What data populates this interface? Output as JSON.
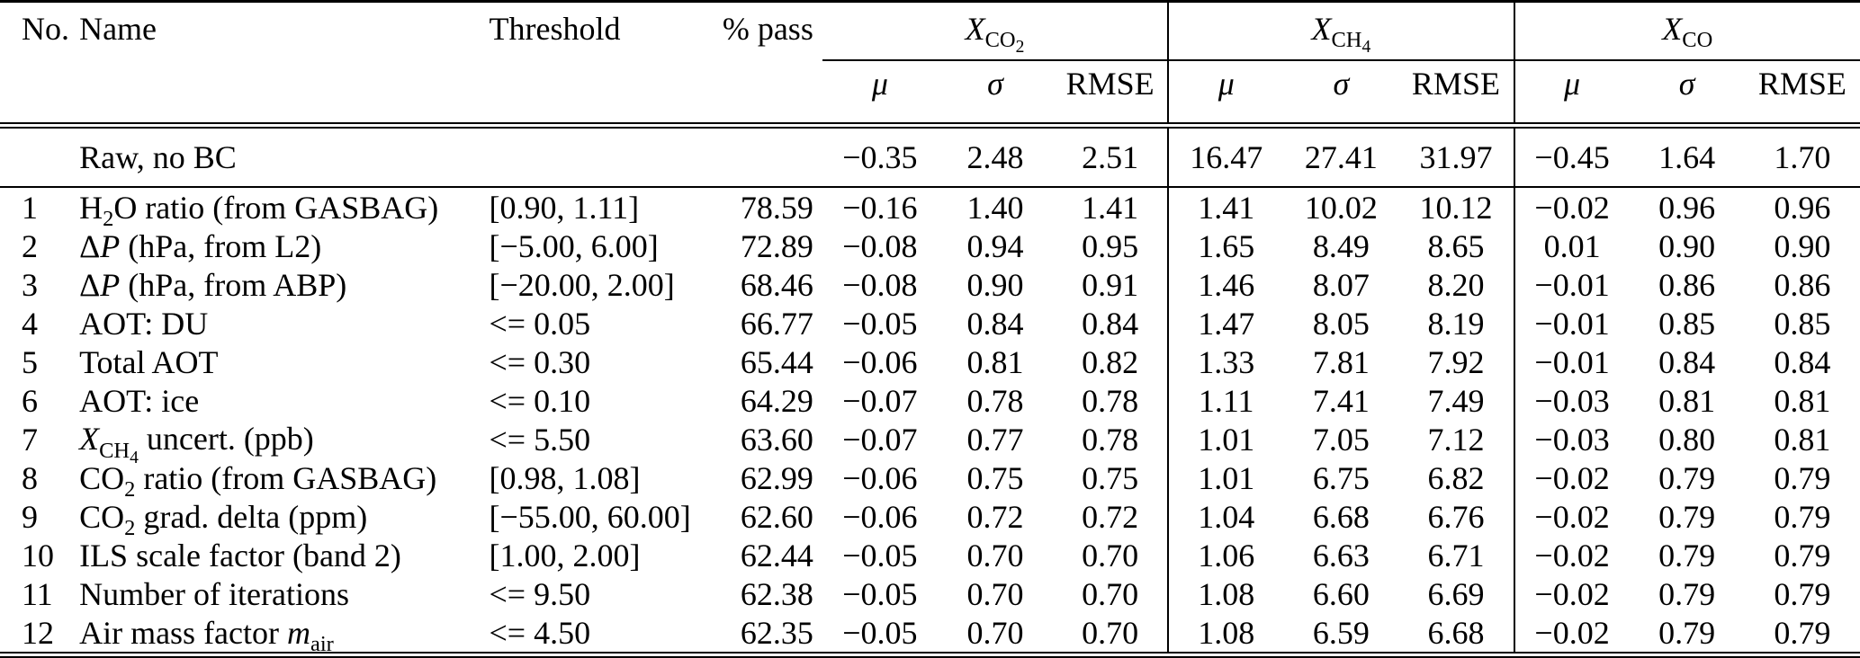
{
  "table": {
    "header": {
      "no": "No.",
      "name": "Name",
      "threshold": "Threshold",
      "pass": "% pass",
      "groups": [
        {
          "label_html": "<i>X</i><sub>CO<sub>2</sub></sub>"
        },
        {
          "label_html": "<i>X</i><sub>CH<sub>4</sub></sub>"
        },
        {
          "label_html": "<i>X</i><sub>CO</sub>"
        }
      ],
      "mu": "μ",
      "sigma": "σ",
      "rmse": "RMSE"
    },
    "raw_row": {
      "name": "Raw, no BC",
      "values": [
        "−0.35",
        "2.48",
        "2.51",
        "16.47",
        "27.41",
        "31.97",
        "−0.45",
        "1.64",
        "1.70"
      ]
    },
    "rows": [
      {
        "no": "1",
        "name_html": "H<sub>2</sub>O ratio (from GASBAG)",
        "threshold": "[0.90, 1.11]",
        "pass": "78.59",
        "values": [
          "−0.16",
          "1.40",
          "1.41",
          "1.41",
          "10.02",
          "10.12",
          "−0.02",
          "0.96",
          "0.96"
        ]
      },
      {
        "no": "2",
        "name_html": "Δ<i>P</i> (hPa, from L2)",
        "threshold": "[−5.00, 6.00]",
        "pass": "72.89",
        "values": [
          "−0.08",
          "0.94",
          "0.95",
          "1.65",
          "8.49",
          "8.65",
          "0.01",
          "0.90",
          "0.90"
        ]
      },
      {
        "no": "3",
        "name_html": "Δ<i>P</i> (hPa, from ABP)",
        "threshold": "[−20.00, 2.00]",
        "pass": "68.46",
        "values": [
          "−0.08",
          "0.90",
          "0.91",
          "1.46",
          "8.07",
          "8.20",
          "−0.01",
          "0.86",
          "0.86"
        ]
      },
      {
        "no": "4",
        "name_html": "AOT: DU",
        "threshold": "<= 0.05",
        "pass": "66.77",
        "values": [
          "−0.05",
          "0.84",
          "0.84",
          "1.47",
          "8.05",
          "8.19",
          "−0.01",
          "0.85",
          "0.85"
        ]
      },
      {
        "no": "5",
        "name_html": "Total AOT",
        "threshold": "<= 0.30",
        "pass": "65.44",
        "values": [
          "−0.06",
          "0.81",
          "0.82",
          "1.33",
          "7.81",
          "7.92",
          "−0.01",
          "0.84",
          "0.84"
        ]
      },
      {
        "no": "6",
        "name_html": "AOT: ice",
        "threshold": "<= 0.10",
        "pass": "64.29",
        "values": [
          "−0.07",
          "0.78",
          "0.78",
          "1.11",
          "7.41",
          "7.49",
          "−0.03",
          "0.81",
          "0.81"
        ]
      },
      {
        "no": "7",
        "name_html": "<i>X</i><sub>CH<sub>4</sub></sub> uncert. (ppb)",
        "threshold": "<= 5.50",
        "pass": "63.60",
        "values": [
          "−0.07",
          "0.77",
          "0.78",
          "1.01",
          "7.05",
          "7.12",
          "−0.03",
          "0.80",
          "0.81"
        ]
      },
      {
        "no": "8",
        "name_html": "CO<sub>2</sub> ratio (from GASBAG)",
        "threshold": "[0.98, 1.08]",
        "pass": "62.99",
        "values": [
          "−0.06",
          "0.75",
          "0.75",
          "1.01",
          "6.75",
          "6.82",
          "−0.02",
          "0.79",
          "0.79"
        ]
      },
      {
        "no": "9",
        "name_html": "CO<sub>2</sub> grad. delta (ppm)",
        "threshold": "[−55.00, 60.00]",
        "pass": "62.60",
        "values": [
          "−0.06",
          "0.72",
          "0.72",
          "1.04",
          "6.68",
          "6.76",
          "−0.02",
          "0.79",
          "0.79"
        ]
      },
      {
        "no": "10",
        "name_html": "ILS scale factor (band 2)",
        "threshold": "[1.00, 2.00]",
        "pass": "62.44",
        "values": [
          "−0.05",
          "0.70",
          "0.70",
          "1.06",
          "6.63",
          "6.71",
          "−0.02",
          "0.79",
          "0.79"
        ]
      },
      {
        "no": "11",
        "name_html": "Number of iterations",
        "threshold": "<= 9.50",
        "pass": "62.38",
        "values": [
          "−0.05",
          "0.70",
          "0.70",
          "1.08",
          "6.60",
          "6.69",
          "−0.02",
          "0.79",
          "0.79"
        ]
      },
      {
        "no": "12",
        "name_html": "Air mass factor <i>m</i><sub>air</sub>",
        "threshold": "<= 4.50",
        "pass": "62.35",
        "values": [
          "−0.05",
          "0.70",
          "0.70",
          "1.08",
          "6.59",
          "6.68",
          "−0.02",
          "0.79",
          "0.79"
        ]
      }
    ]
  }
}
